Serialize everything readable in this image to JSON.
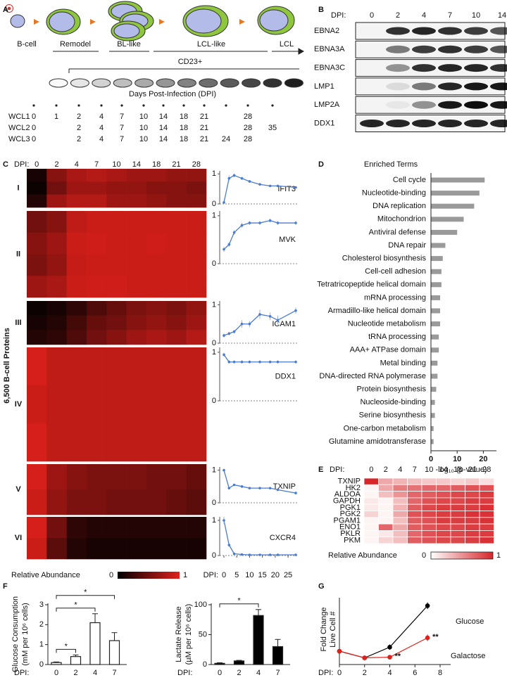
{
  "figure": {
    "panel_labels": [
      "A",
      "B",
      "C",
      "D",
      "E",
      "F",
      "G"
    ]
  },
  "panel_a": {
    "stages": [
      "B-cell",
      "Remodel",
      "BL-like",
      "LCL-like",
      "LCL"
    ],
    "marker": "CD23+",
    "axis_label": "Days Post-Infection (DPI)",
    "samples": [
      {
        "name": "WCL1",
        "days": [
          0,
          1,
          2,
          4,
          7,
          10,
          14,
          18,
          21,
          null,
          28,
          null
        ]
      },
      {
        "name": "WCL2",
        "days": [
          0,
          null,
          2,
          4,
          7,
          10,
          14,
          18,
          21,
          null,
          28,
          35
        ]
      },
      {
        "name": "WCL3",
        "days": [
          0,
          null,
          2,
          4,
          7,
          10,
          14,
          18,
          21,
          24,
          28,
          null
        ]
      }
    ]
  },
  "panel_b": {
    "dpi_label": "DPI:",
    "days": [
      0,
      2,
      4,
      7,
      10,
      14
    ],
    "proteins": [
      {
        "name": "EBNA2",
        "intensity": [
          0,
          0.8,
          0.85,
          0.8,
          0.75,
          0.65
        ]
      },
      {
        "name": "EBNA3A",
        "intensity": [
          0,
          0.5,
          0.75,
          0.8,
          0.75,
          0.65
        ]
      },
      {
        "name": "EBNA3C",
        "intensity": [
          0,
          0.4,
          0.8,
          0.85,
          0.85,
          0.8
        ]
      },
      {
        "name": "LMP1",
        "intensity": [
          0,
          0.1,
          0.5,
          0.85,
          0.9,
          0.9
        ]
      },
      {
        "name": "LMP2A",
        "intensity": [
          0,
          0.05,
          0.4,
          0.9,
          0.95,
          0.9
        ]
      },
      {
        "name": "DDX1",
        "intensity": [
          0.85,
          0.85,
          0.85,
          0.85,
          0.85,
          0.85
        ]
      }
    ]
  },
  "panel_c": {
    "dpi_label": "DPI:",
    "days": [
      0,
      2,
      4,
      7,
      10,
      14,
      18,
      21,
      28
    ],
    "y_label": "6,500 B-cell Proteins",
    "clusters": [
      {
        "name": "I",
        "rows": [
          [
            0.1,
            0.6,
            0.75,
            0.8,
            0.75,
            0.7,
            0.7,
            0.65,
            0.65
          ],
          [
            0.05,
            0.5,
            0.7,
            0.7,
            0.65,
            0.65,
            0.6,
            0.6,
            0.55
          ],
          [
            0.15,
            0.7,
            0.8,
            0.8,
            0.7,
            0.7,
            0.65,
            0.6,
            0.6
          ]
        ]
      },
      {
        "name": "II",
        "rows": [
          [
            0.5,
            0.6,
            0.85,
            0.9,
            0.9,
            0.9,
            0.9,
            0.9,
            0.9
          ],
          [
            0.6,
            0.7,
            0.9,
            0.92,
            0.9,
            0.9,
            0.92,
            0.9,
            0.9
          ],
          [
            0.55,
            0.65,
            0.88,
            0.9,
            0.9,
            0.9,
            0.9,
            0.9,
            0.9
          ],
          [
            0.7,
            0.75,
            0.9,
            0.92,
            0.92,
            0.9,
            0.9,
            0.9,
            0.9
          ]
        ]
      },
      {
        "name": "III",
        "rows": [
          [
            0.05,
            0.1,
            0.2,
            0.35,
            0.45,
            0.55,
            0.6,
            0.55,
            0.65
          ],
          [
            0.1,
            0.15,
            0.3,
            0.45,
            0.5,
            0.6,
            0.65,
            0.6,
            0.7
          ],
          [
            0.15,
            0.2,
            0.35,
            0.5,
            0.6,
            0.7,
            0.75,
            0.7,
            0.8
          ]
        ]
      },
      {
        "name": "IV",
        "rows": [
          [
            0.95,
            0.85,
            0.85,
            0.85,
            0.85,
            0.85,
            0.85,
            0.85,
            0.85
          ],
          [
            0.9,
            0.85,
            0.85,
            0.85,
            0.85,
            0.85,
            0.85,
            0.85,
            0.85
          ],
          [
            0.95,
            0.85,
            0.85,
            0.85,
            0.85,
            0.85,
            0.85,
            0.85,
            0.85
          ]
        ]
      },
      {
        "name": "V",
        "rows": [
          [
            0.95,
            0.7,
            0.6,
            0.55,
            0.55,
            0.55,
            0.5,
            0.5,
            0.45
          ],
          [
            0.9,
            0.65,
            0.55,
            0.55,
            0.5,
            0.5,
            0.5,
            0.45,
            0.4
          ]
        ]
      },
      {
        "name": "VI",
        "rows": [
          [
            0.95,
            0.5,
            0.2,
            0.15,
            0.15,
            0.15,
            0.15,
            0.15,
            0.15
          ],
          [
            0.9,
            0.4,
            0.15,
            0.1,
            0.1,
            0.1,
            0.1,
            0.1,
            0.1
          ]
        ]
      }
    ],
    "legend": {
      "title": "Relative  Abundance",
      "min": 0,
      "max": 1
    }
  },
  "panel_e": {
    "dpi_label": "DPI:",
    "days": [
      0,
      2,
      4,
      7,
      10,
      14,
      18,
      21,
      28
    ],
    "genes": [
      "TXNIP",
      "HK2",
      "ALDOA",
      "GAPDH",
      "PGK1",
      "PGK2",
      "PGAM1",
      "ENO1",
      "PKLR",
      "PKM"
    ],
    "values": [
      [
        1,
        0.4,
        0.35,
        0.3,
        0.25,
        0.25,
        0.2,
        0.25,
        0.15
      ],
      [
        0.05,
        0.4,
        0.6,
        0.65,
        0.7,
        0.7,
        0.75,
        0.8,
        0.8
      ],
      [
        0.05,
        0.3,
        0.5,
        0.7,
        0.75,
        0.8,
        0.85,
        0.85,
        0.9
      ],
      [
        0.1,
        0.05,
        0.3,
        0.7,
        0.8,
        0.85,
        0.85,
        0.9,
        0.9
      ],
      [
        0.1,
        0.05,
        0.35,
        0.75,
        0.85,
        0.9,
        0.9,
        0.9,
        0.95
      ],
      [
        0.2,
        0.05,
        0.4,
        0.8,
        0.85,
        0.9,
        0.9,
        0.95,
        0.95
      ],
      [
        0.05,
        0.05,
        0.3,
        0.75,
        0.8,
        0.9,
        0.9,
        0.9,
        0.95
      ],
      [
        0.05,
        0.7,
        0.4,
        0.75,
        0.8,
        0.85,
        0.85,
        0.9,
        0.9
      ],
      [
        0.05,
        0.1,
        0.3,
        0.7,
        0.8,
        0.85,
        0.85,
        0.9,
        0.9
      ],
      [
        0.05,
        0.2,
        0.3,
        0.75,
        0.8,
        0.85,
        0.85,
        0.9,
        0.95
      ]
    ],
    "legend": {
      "title": "Relative Abundance",
      "min": 0,
      "max": 1
    }
  },
  "chart_data": [
    {
      "type": "line",
      "title": "IFIT3",
      "color": "#4a7bd0",
      "x": [
        0,
        2,
        4,
        7,
        10,
        14,
        18,
        21,
        28
      ],
      "values": [
        0.05,
        0.85,
        0.95,
        0.85,
        0.75,
        0.65,
        0.6,
        0.6,
        0.55
      ],
      "errors": [
        0.02,
        0.1,
        0.06,
        0.05,
        0.04,
        0.03,
        0.03,
        0.03,
        0.03
      ],
      "xlim": [
        0,
        28
      ],
      "ylim": [
        0,
        1.1
      ],
      "yticks": [
        0,
        1
      ]
    },
    {
      "type": "line",
      "title": "MVK",
      "color": "#4a7bd0",
      "x": [
        0,
        2,
        4,
        7,
        10,
        14,
        18,
        21,
        28
      ],
      "values": [
        0.3,
        0.4,
        0.65,
        0.8,
        0.85,
        0.85,
        0.9,
        0.85,
        0.85
      ],
      "errors": [
        0.05,
        0.05,
        0.05,
        0.05,
        0.04,
        0.04,
        0.04,
        0.04,
        0.04
      ],
      "xlim": [
        0,
        28
      ],
      "ylim": [
        0,
        1.1
      ],
      "yticks": [
        0,
        1
      ]
    },
    {
      "type": "line",
      "title": "ICAM1",
      "color": "#4a7bd0",
      "x": [
        0,
        2,
        4,
        7,
        10,
        14,
        18,
        21,
        28
      ],
      "values": [
        0.2,
        0.25,
        0.3,
        0.5,
        0.5,
        0.75,
        0.7,
        0.6,
        0.85
      ],
      "errors": [
        0.05,
        0.05,
        0.05,
        0.1,
        0.08,
        0.12,
        0.1,
        0.12,
        0.08
      ],
      "xlim": [
        0,
        28
      ],
      "ylim": [
        0,
        1.1
      ],
      "yticks": [
        0,
        1
      ]
    },
    {
      "type": "line",
      "title": "DDX1",
      "color": "#4a7bd0",
      "x": [
        0,
        2,
        4,
        7,
        10,
        14,
        18,
        21,
        28
      ],
      "values": [
        0.95,
        0.8,
        0.8,
        0.8,
        0.8,
        0.8,
        0.8,
        0.8,
        0.8
      ],
      "errors": [
        0.04,
        0.03,
        0.03,
        0.03,
        0.03,
        0.03,
        0.03,
        0.03,
        0.03
      ],
      "xlim": [
        0,
        28
      ],
      "ylim": [
        0,
        1.1
      ],
      "yticks": [
        0,
        1
      ]
    },
    {
      "type": "line",
      "title": "TXNIP",
      "color": "#4a7bd0",
      "x": [
        0,
        2,
        4,
        7,
        10,
        14,
        18,
        21,
        28
      ],
      "values": [
        1,
        0.45,
        0.55,
        0.5,
        0.45,
        0.45,
        0.45,
        0.4,
        0.3
      ],
      "errors": [
        0.04,
        0.04,
        0.03,
        0.03,
        0.03,
        0.03,
        0.03,
        0.03,
        0.03
      ],
      "xlim": [
        0,
        28
      ],
      "ylim": [
        0,
        1.1
      ],
      "yticks": [
        0,
        1
      ]
    },
    {
      "type": "line",
      "title": "CXCR4",
      "color": "#4a7bd0",
      "x": [
        0,
        2,
        4,
        7,
        10,
        14,
        18,
        21,
        28
      ],
      "values": [
        1,
        0.3,
        0.05,
        0.03,
        0.02,
        0.02,
        0.02,
        0.02,
        0.02
      ],
      "errors": [
        0.1,
        0.05,
        0.02,
        0.01,
        0.01,
        0.01,
        0.01,
        0.01,
        0.01
      ],
      "xlim": [
        0,
        28
      ],
      "ylim": [
        0,
        1.1
      ],
      "yticks": [
        0,
        1
      ],
      "xlabel": "DPI:",
      "xticks": [
        0,
        5,
        10,
        15,
        20,
        25
      ]
    },
    {
      "type": "barh",
      "title": "Enriched Terms",
      "color": "#9a9a9a",
      "categories": [
        "Cell cycle",
        "Nucleotide-binding",
        "DNA replication",
        "Mitochondrion",
        "Antiviral defense",
        "DNA repair",
        "Cholesterol biosynthesis",
        "Cell-cell adhesion",
        "Tetratricopeptide helical domain",
        "mRNA processing",
        "Armadillo-like helical domain",
        "Nucleotide metabolism",
        "tRNA processing",
        "AAA+ ATPase domain",
        "Metal binding",
        "DNA-directed RNA polymerase",
        "Protein biosynthesis",
        "Nucleoside-binding",
        "Serine biosynthesis",
        "One-carbon metabolism",
        "Glutamine amidotransferase"
      ],
      "values": [
        20.5,
        18.5,
        16.5,
        12.5,
        10,
        5.5,
        4.5,
        4,
        4,
        3.5,
        3.5,
        3.5,
        3,
        3,
        2.5,
        2.5,
        2,
        1.5,
        1.5,
        1,
        1
      ],
      "xlim": [
        0,
        25
      ],
      "xticks": [
        0,
        10,
        20
      ],
      "xlabel": "-log₁₀ (p-value)"
    },
    {
      "type": "bar",
      "color": "#ffffff",
      "xlabel": "DPI:",
      "categories": [
        0,
        2,
        4,
        7
      ],
      "values": [
        0.1,
        0.4,
        2.1,
        1.2
      ],
      "errors": [
        0.03,
        0.08,
        0.45,
        0.4
      ],
      "ylabel": [
        "Glucose Consumption",
        "(mM per 10⁶ cells)"
      ],
      "ylim": [
        0,
        3
      ],
      "yticks": [
        0,
        1,
        2,
        3
      ],
      "annotations": [
        {
          "text": "*",
          "between": [
            0,
            2
          ]
        },
        {
          "text": "*",
          "between": [
            0,
            4
          ]
        },
        {
          "text": "*",
          "between": [
            0,
            7
          ]
        }
      ]
    },
    {
      "type": "bar",
      "color": "#000000",
      "xlabel": "DPI:",
      "categories": [
        0,
        2,
        4,
        7
      ],
      "values": [
        2,
        6,
        82,
        30
      ],
      "errors": [
        1,
        1,
        10,
        12
      ],
      "ylabel": [
        "Lactate Release",
        "(µM per 10⁶ cells)"
      ],
      "ylim": [
        0,
        100
      ],
      "yticks": [
        0,
        50,
        100
      ],
      "annotations": [
        {
          "text": "*",
          "between": [
            0,
            4
          ]
        }
      ]
    },
    {
      "type": "line",
      "xlabel": "DPI:",
      "ylabel": [
        "Fold Change",
        "Live Cell #"
      ],
      "x": [
        0,
        2,
        4,
        7
      ],
      "xlim": [
        0,
        8
      ],
      "xticks": [
        0,
        2,
        4,
        6,
        8
      ],
      "ylim": [
        0,
        5
      ],
      "series": [
        {
          "name": "Glucose",
          "color": "#000000",
          "values": [
            1,
            0.5,
            1.3,
            4.4
          ],
          "errors": [
            0.05,
            0.05,
            0.2,
            0.25
          ]
        },
        {
          "name": "Galactose",
          "color": "#e0201b",
          "values": [
            1,
            0.5,
            0.55,
            2.0
          ],
          "errors": [
            0.05,
            0.05,
            0.08,
            0.25
          ]
        }
      ],
      "annotations": [
        {
          "text": "**",
          "x": 4
        },
        {
          "text": "**",
          "x": 7
        }
      ]
    }
  ]
}
